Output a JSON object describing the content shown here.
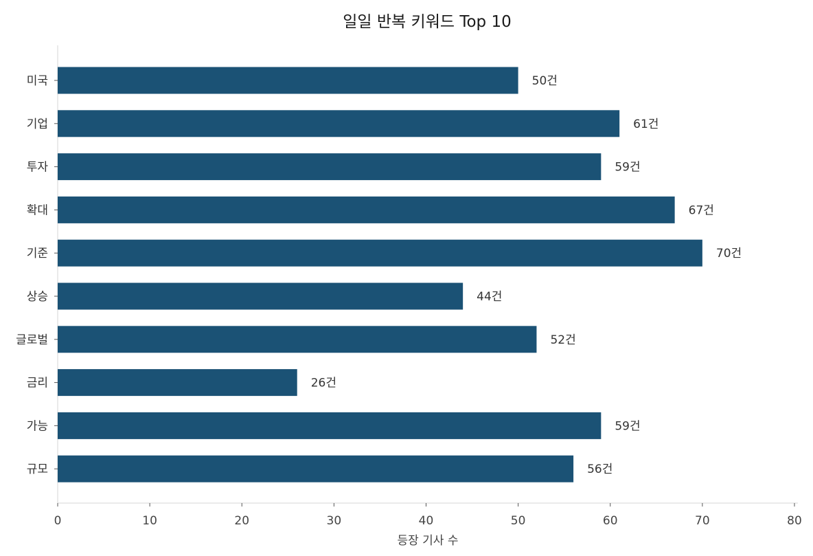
{
  "chart_data": {
    "type": "bar",
    "orientation": "horizontal",
    "title": "일일 반복 키워드 Top 10",
    "xlabel": "등장 기사 수",
    "ylabel": "",
    "categories": [
      "미국",
      "기업",
      "투자",
      "확대",
      "기준",
      "상승",
      "글로벌",
      "금리",
      "가능",
      "규모"
    ],
    "values": [
      50,
      61,
      59,
      67,
      70,
      44,
      52,
      26,
      59,
      56
    ],
    "data_labels": [
      "50건",
      "61건",
      "59건",
      "67건",
      "70건",
      "44건",
      "52건",
      "26건",
      "59건",
      "56건"
    ],
    "xlim": [
      0,
      80
    ],
    "xticks": [
      0,
      10,
      20,
      30,
      40,
      50,
      60,
      70,
      80
    ],
    "grid": false,
    "bar_color": "#1b5275"
  }
}
